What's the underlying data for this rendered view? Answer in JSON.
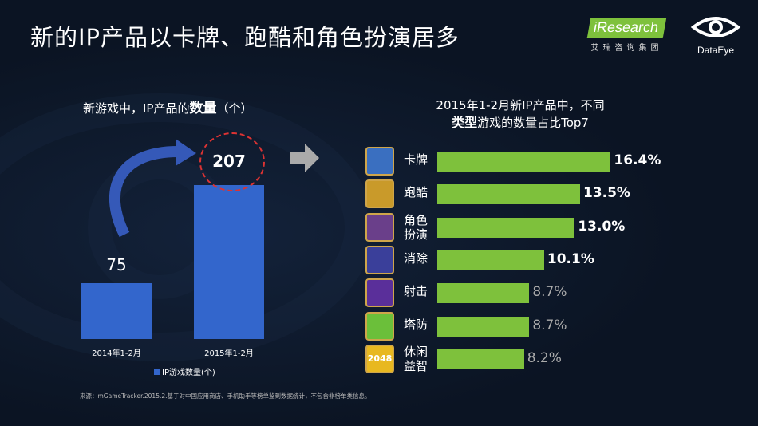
{
  "slide": {
    "title": "新的IP产品以卡牌、跑酷和角色扮演居多",
    "source": "来源：mGameTracker.2015.2.基于对中国应用商店、手机助手等榜单监到数据统计，不包含非榜单类信息。"
  },
  "logos": {
    "iresearch": "iResearch",
    "iresearch_sub": "艾瑞咨询集团",
    "dataeye": "DataEye"
  },
  "colors": {
    "bar_blue": "#3366cc",
    "bar_green": "#7ec13c",
    "highlight": "#dd3333",
    "background": "#0b1423"
  },
  "chart_data": [
    {
      "type": "bar",
      "title_prefix": "新游戏中，IP产品的",
      "title_bold": "数量",
      "title_suffix": "（个）",
      "categories": [
        "2014年1-2月",
        "2015年1-2月"
      ],
      "series": [
        {
          "name": "IP游戏数量(个)",
          "values": [
            75,
            207
          ]
        }
      ],
      "value_labels": [
        "75",
        "207"
      ],
      "ylim": [
        0,
        230
      ]
    },
    {
      "type": "bar",
      "orientation": "horizontal",
      "title_line1": "2015年1-2月新IP产品中，不同",
      "title_bold": "类型",
      "title_line2_suffix": "游戏的数量占比Top7",
      "categories": [
        "卡牌",
        "跑酷",
        "角色扮演",
        "消除",
        "射击",
        "塔防",
        "休闲益智"
      ],
      "category_lines": [
        [
          "卡牌"
        ],
        [
          "跑酷"
        ],
        [
          "角色",
          "扮演"
        ],
        [
          "消除"
        ],
        [
          "射击"
        ],
        [
          "塔防"
        ],
        [
          "休闲",
          "益智"
        ]
      ],
      "values": [
        16.4,
        13.5,
        13.0,
        10.1,
        8.7,
        8.7,
        8.2
      ],
      "value_labels": [
        "16.4%",
        "13.5%",
        "13.0%",
        "10.1%",
        "8.7%",
        "8.7%",
        "8.2%"
      ],
      "ylim": [
        0,
        17.5
      ]
    }
  ],
  "icons": [
    "card-hero-game-icon",
    "temple-run-game-icon",
    "dark-mage-game-icon",
    "match-gems-game-icon",
    "shooter-game-icon",
    "carrot-tower-defense-icon",
    "2048-game-icon"
  ],
  "icon_text_2048": "2048"
}
